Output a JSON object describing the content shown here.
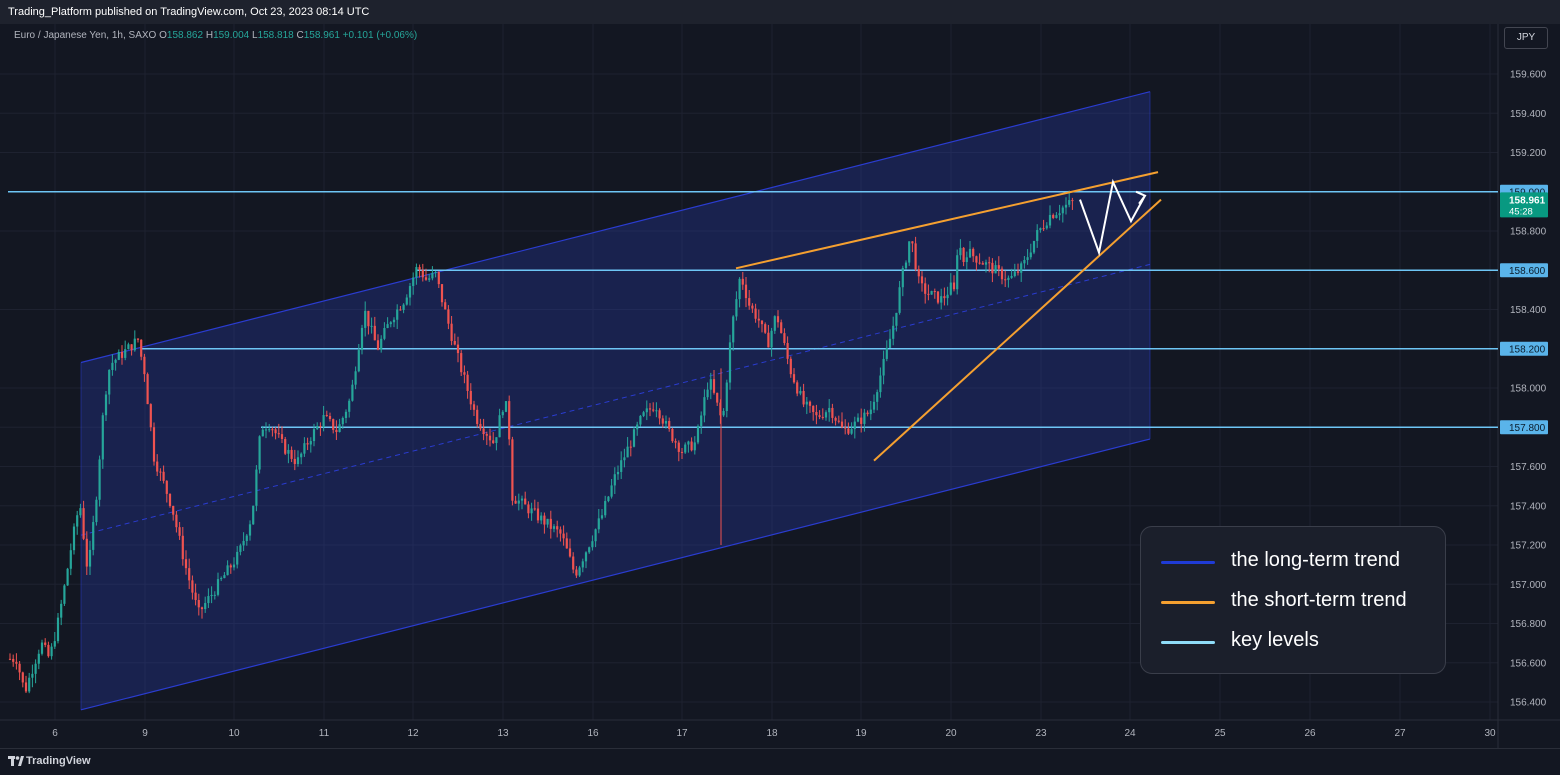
{
  "header": {
    "published": "Trading_Platform published on TradingView.com, Oct 23, 2023 08:14 UTC"
  },
  "symbol": {
    "name": "Euro / Japanese Yen, 1h, SAXO",
    "open_label": "O",
    "open": "158.862",
    "high_label": "H",
    "high": "159.004",
    "low_label": "L",
    "low": "158.818",
    "close_label": "C",
    "close": "158.961",
    "change": "+0.101 (+0.06%)"
  },
  "currency": "JPY",
  "footer": {
    "logo": "TradingView"
  },
  "colors": {
    "bg": "#131722",
    "up": "#26a69a",
    "down": "#ef5350",
    "channel": "#2a3cd0",
    "short_trend": "#f5a030",
    "key_level": "#6ec6f5",
    "projection": "#ffffff"
  },
  "legend": {
    "items": [
      {
        "label": "the long-term trend",
        "color": "#1f3bd6"
      },
      {
        "label": "the short-term trend",
        "color": "#f5a030"
      },
      {
        "label": "key levels",
        "color": "#8fdcf8"
      }
    ]
  },
  "chart_data": {
    "type": "candlestick",
    "title": "Euro / Japanese Yen, 1h, SAXO",
    "y_ticks": [
      "159.600",
      "159.400",
      "159.200",
      "158.800",
      "158.400",
      "158.000",
      "157.800",
      "157.600",
      "157.400",
      "157.200",
      "157.000",
      "156.800",
      "156.600",
      "156.400"
    ],
    "ylim": [
      156.32,
      159.75
    ],
    "x_ticks": [
      {
        "label": "6",
        "day": 6
      },
      {
        "label": "9",
        "day": 9
      },
      {
        "label": "10",
        "day": 10
      },
      {
        "label": "11",
        "day": 11
      },
      {
        "label": "12",
        "day": 12
      },
      {
        "label": "13",
        "day": 13
      },
      {
        "label": "16",
        "day": 16
      },
      {
        "label": "17",
        "day": 17
      },
      {
        "label": "18",
        "day": 18
      },
      {
        "label": "19",
        "day": 19
      },
      {
        "label": "20",
        "day": 20
      },
      {
        "label": "23",
        "day": 23
      },
      {
        "label": "24",
        "day": 24
      },
      {
        "label": "25",
        "day": 25
      },
      {
        "label": "26",
        "day": 26
      },
      {
        "label": "27",
        "day": 27
      },
      {
        "label": "30",
        "day": 30
      }
    ],
    "key_levels": [
      {
        "price": 159.0,
        "label": "159.000",
        "from_day": 5.3
      },
      {
        "price": 158.6,
        "label": "158.600",
        "from_day": 12.03
      },
      {
        "price": 158.2,
        "label": "158.200",
        "from_day": 8.8
      },
      {
        "price": 157.8,
        "label": "157.800",
        "from_day": 10.3
      }
    ],
    "last_price": {
      "label": "158.961",
      "countdown": "45:28",
      "price": 158.961
    },
    "channel": {
      "upper": [
        [
          6.3,
          158.13
        ],
        [
          24.2,
          159.51
        ]
      ],
      "lower": [
        [
          6.3,
          156.36
        ],
        [
          24.2,
          157.74
        ]
      ],
      "mid": [
        [
          6.3,
          157.25
        ],
        [
          24.2,
          158.63
        ]
      ]
    },
    "short_trend": {
      "upper": [
        [
          17.6,
          158.61
        ],
        [
          24.3,
          159.1
        ]
      ],
      "lower": [
        [
          19.1,
          157.63
        ],
        [
          24.3,
          158.96
        ]
      ]
    },
    "projection": [
      [
        23.4,
        158.96
      ],
      [
        23.62,
        158.69
      ],
      [
        23.8,
        159.05
      ],
      [
        24.0,
        158.85
      ],
      [
        24.15,
        158.98
      ]
    ],
    "path_days": [
      5.3,
      5.45,
      5.6,
      5.75,
      5.9,
      6.05,
      6.15,
      6.3,
      6.45,
      6.6,
      6.75,
      6.9,
      7.0,
      8.65,
      8.75,
      8.85,
      9.1,
      9.3,
      9.45,
      9.6,
      9.75,
      9.9,
      10.05,
      10.2,
      10.3,
      10.4,
      10.55,
      10.7,
      10.85,
      11.0,
      11.15,
      11.3,
      11.45,
      11.6,
      11.75,
      11.9,
      12.05,
      12.15,
      12.25,
      12.35,
      12.5,
      12.7,
      12.9,
      13.1,
      13.2,
      13.35,
      13.5,
      15.65,
      15.8,
      15.95,
      16.1,
      16.25,
      16.4,
      16.55,
      16.7,
      16.85,
      17.0,
      17.15,
      17.3,
      17.45,
      17.55,
      17.65,
      17.75,
      17.85,
      17.95,
      18.05,
      18.2,
      18.35,
      18.5,
      18.65,
      18.8,
      18.95,
      19.1,
      19.25,
      19.35,
      19.45,
      19.55,
      19.65,
      19.75,
      19.9,
      20.05,
      20.2,
      20.3,
      20.4,
      20.5,
      20.6,
      20.7,
      20.8,
      22.65,
      22.8,
      22.95,
      23.1,
      23.25,
      23.4
    ],
    "path_prices": [
      156.62,
      156.45,
      156.58,
      156.7,
      156.62,
      156.8,
      156.95,
      157.2,
      157.42,
      157.05,
      157.45,
      157.95,
      158.12,
      158.25,
      158.15,
      158.18,
      157.65,
      157.4,
      157.1,
      156.85,
      156.95,
      157.05,
      157.15,
      157.35,
      157.8,
      157.82,
      157.7,
      157.62,
      157.75,
      157.85,
      157.78,
      157.95,
      158.4,
      158.2,
      158.35,
      158.45,
      158.62,
      158.55,
      158.58,
      158.4,
      158.15,
      157.85,
      157.72,
      157.95,
      157.88,
      157.75,
      157.45,
      157.25,
      157.05,
      157.2,
      157.35,
      157.55,
      157.7,
      157.85,
      157.92,
      157.78,
      157.68,
      157.72,
      158.05,
      157.82,
      158.3,
      158.58,
      158.42,
      158.35,
      158.22,
      158.38,
      158.1,
      157.92,
      157.85,
      157.9,
      157.78,
      157.82,
      157.88,
      158.12,
      158.3,
      158.55,
      158.78,
      158.52,
      158.48,
      158.45,
      158.52,
      158.48,
      158.6,
      158.82,
      158.7,
      158.75,
      158.65,
      158.7,
      158.55,
      158.62,
      158.78,
      158.88,
      158.92,
      158.96
    ]
  }
}
